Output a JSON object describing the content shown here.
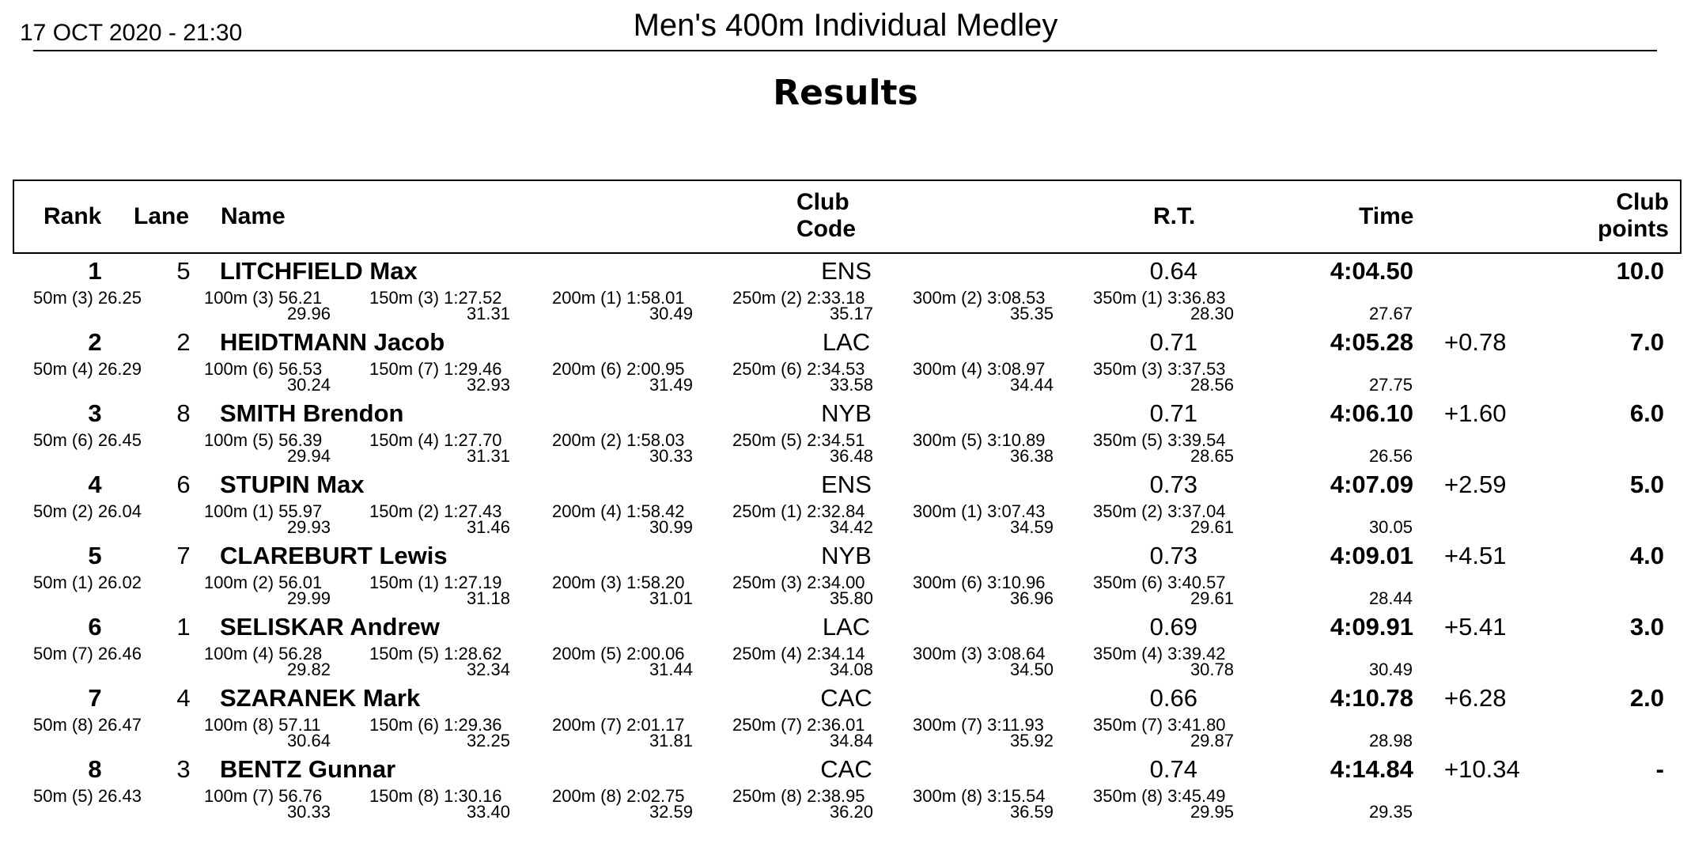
{
  "header": {
    "date": "17 OCT 2020 - 21:30",
    "event": "Men's 400m Individual Medley",
    "subtitle": "Results"
  },
  "columns": {
    "rank": "Rank",
    "lane": "Lane",
    "name": "Name",
    "club_line1": "Club",
    "club_line2": "Code",
    "rt": "R.T.",
    "time": "Time",
    "points_line1": "Club",
    "points_line2": "points"
  },
  "results": [
    {
      "rank": "1",
      "lane": "5",
      "name": "LITCHFIELD Max",
      "club": "ENS",
      "rt": "0.64",
      "time": "4:04.50",
      "behind": "",
      "points": "10.0",
      "splits": [
        {
          "cum": "50m  (3) 26.25",
          "seg": ""
        },
        {
          "cum": "100m  (3) 56.21",
          "seg": "29.96"
        },
        {
          "cum": "150m  (3) 1:27.52",
          "seg": "31.31"
        },
        {
          "cum": "200m  (1) 1:58.01",
          "seg": "30.49"
        },
        {
          "cum": "250m  (2) 2:33.18",
          "seg": "35.17"
        },
        {
          "cum": "300m  (2) 3:08.53",
          "seg": "35.35"
        },
        {
          "cum": "350m  (1) 3:36.83",
          "seg": "28.30"
        }
      ],
      "last_split": "27.67"
    },
    {
      "rank": "2",
      "lane": "2",
      "name": "HEIDTMANN Jacob",
      "club": "LAC",
      "rt": "0.71",
      "time": "4:05.28",
      "behind": "+0.78",
      "points": "7.0",
      "splits": [
        {
          "cum": "50m  (4) 26.29",
          "seg": ""
        },
        {
          "cum": "100m  (6) 56.53",
          "seg": "30.24"
        },
        {
          "cum": "150m  (7) 1:29.46",
          "seg": "32.93"
        },
        {
          "cum": "200m  (6) 2:00.95",
          "seg": "31.49"
        },
        {
          "cum": "250m  (6) 2:34.53",
          "seg": "33.58"
        },
        {
          "cum": "300m  (4) 3:08.97",
          "seg": "34.44"
        },
        {
          "cum": "350m  (3) 3:37.53",
          "seg": "28.56"
        }
      ],
      "last_split": "27.75"
    },
    {
      "rank": "3",
      "lane": "8",
      "name": "SMITH Brendon",
      "club": "NYB",
      "rt": "0.71",
      "time": "4:06.10",
      "behind": "+1.60",
      "points": "6.0",
      "splits": [
        {
          "cum": "50m  (6) 26.45",
          "seg": ""
        },
        {
          "cum": "100m  (5) 56.39",
          "seg": "29.94"
        },
        {
          "cum": "150m  (4) 1:27.70",
          "seg": "31.31"
        },
        {
          "cum": "200m  (2) 1:58.03",
          "seg": "30.33"
        },
        {
          "cum": "250m  (5) 2:34.51",
          "seg": "36.48"
        },
        {
          "cum": "300m  (5) 3:10.89",
          "seg": "36.38"
        },
        {
          "cum": "350m  (5) 3:39.54",
          "seg": "28.65"
        }
      ],
      "last_split": "26.56"
    },
    {
      "rank": "4",
      "lane": "6",
      "name": "STUPIN Max",
      "club": "ENS",
      "rt": "0.73",
      "time": "4:07.09",
      "behind": "+2.59",
      "points": "5.0",
      "splits": [
        {
          "cum": "50m  (2) 26.04",
          "seg": ""
        },
        {
          "cum": "100m  (1) 55.97",
          "seg": "29.93"
        },
        {
          "cum": "150m  (2) 1:27.43",
          "seg": "31.46"
        },
        {
          "cum": "200m  (4) 1:58.42",
          "seg": "30.99"
        },
        {
          "cum": "250m  (1) 2:32.84",
          "seg": "34.42"
        },
        {
          "cum": "300m  (1) 3:07.43",
          "seg": "34.59"
        },
        {
          "cum": "350m  (2) 3:37.04",
          "seg": "29.61"
        }
      ],
      "last_split": "30.05"
    },
    {
      "rank": "5",
      "lane": "7",
      "name": "CLAREBURT Lewis",
      "club": "NYB",
      "rt": "0.73",
      "time": "4:09.01",
      "behind": "+4.51",
      "points": "4.0",
      "splits": [
        {
          "cum": "50m  (1) 26.02",
          "seg": ""
        },
        {
          "cum": "100m  (2) 56.01",
          "seg": "29.99"
        },
        {
          "cum": "150m  (1) 1:27.19",
          "seg": "31.18"
        },
        {
          "cum": "200m  (3) 1:58.20",
          "seg": "31.01"
        },
        {
          "cum": "250m  (3) 2:34.00",
          "seg": "35.80"
        },
        {
          "cum": "300m  (6) 3:10.96",
          "seg": "36.96"
        },
        {
          "cum": "350m  (6) 3:40.57",
          "seg": "29.61"
        }
      ],
      "last_split": "28.44"
    },
    {
      "rank": "6",
      "lane": "1",
      "name": "SELISKAR Andrew",
      "club": "LAC",
      "rt": "0.69",
      "time": "4:09.91",
      "behind": "+5.41",
      "points": "3.0",
      "splits": [
        {
          "cum": "50m  (7) 26.46",
          "seg": ""
        },
        {
          "cum": "100m  (4) 56.28",
          "seg": "29.82"
        },
        {
          "cum": "150m  (5) 1:28.62",
          "seg": "32.34"
        },
        {
          "cum": "200m  (5) 2:00.06",
          "seg": "31.44"
        },
        {
          "cum": "250m  (4) 2:34.14",
          "seg": "34.08"
        },
        {
          "cum": "300m  (3) 3:08.64",
          "seg": "34.50"
        },
        {
          "cum": "350m  (4) 3:39.42",
          "seg": "30.78"
        }
      ],
      "last_split": "30.49"
    },
    {
      "rank": "7",
      "lane": "4",
      "name": "SZARANEK Mark",
      "club": "CAC",
      "rt": "0.66",
      "time": "4:10.78",
      "behind": "+6.28",
      "points": "2.0",
      "splits": [
        {
          "cum": "50m  (8) 26.47",
          "seg": ""
        },
        {
          "cum": "100m  (8) 57.11",
          "seg": "30.64"
        },
        {
          "cum": "150m  (6) 1:29.36",
          "seg": "32.25"
        },
        {
          "cum": "200m  (7) 2:01.17",
          "seg": "31.81"
        },
        {
          "cum": "250m  (7) 2:36.01",
          "seg": "34.84"
        },
        {
          "cum": "300m  (7) 3:11.93",
          "seg": "35.92"
        },
        {
          "cum": "350m  (7) 3:41.80",
          "seg": "29.87"
        }
      ],
      "last_split": "28.98"
    },
    {
      "rank": "8",
      "lane": "3",
      "name": "BENTZ Gunnar",
      "club": "CAC",
      "rt": "0.74",
      "time": "4:14.84",
      "behind": "+10.34",
      "points": "-",
      "splits": [
        {
          "cum": "50m  (5) 26.43",
          "seg": ""
        },
        {
          "cum": "100m  (7) 56.76",
          "seg": "30.33"
        },
        {
          "cum": "150m  (8) 1:30.16",
          "seg": "33.40"
        },
        {
          "cum": "200m  (8) 2:02.75",
          "seg": "32.59"
        },
        {
          "cum": "250m  (8) 2:38.95",
          "seg": "36.20"
        },
        {
          "cum": "300m  (8) 3:15.54",
          "seg": "36.59"
        },
        {
          "cum": "350m  (8) 3:45.49",
          "seg": "29.95"
        }
      ],
      "last_split": "29.35"
    }
  ]
}
